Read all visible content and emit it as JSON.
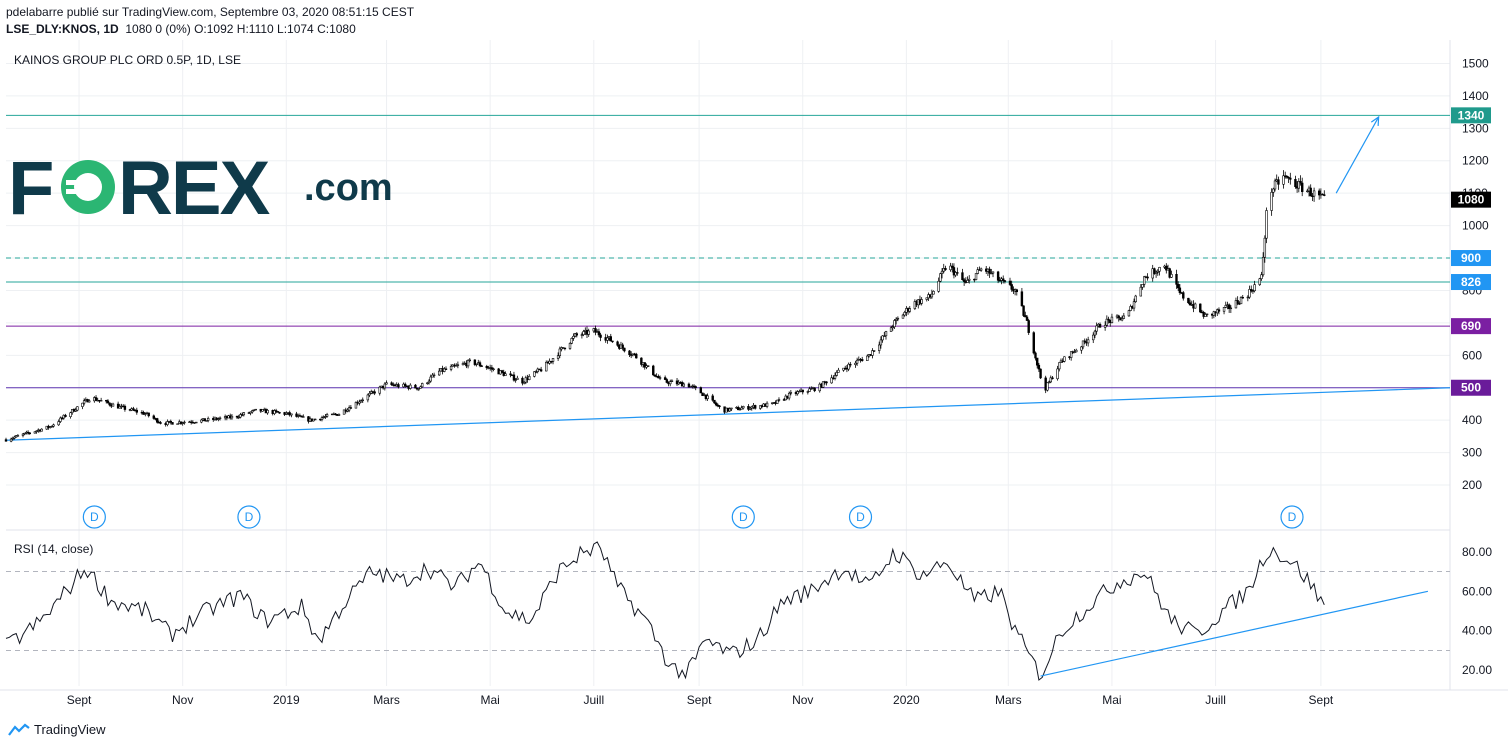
{
  "header": {
    "line1": "pdelabarre publié sur TradingView.com, Septembre 03, 2020 08:51:15 CEST",
    "symbol": "LSE_DLY:KNOS, 1D",
    "quote": "1080 0 (0%) O:1092 H:1110 L:1074 C:1080"
  },
  "chart_title": "KAINOS GROUP PLC ORD 0.5P, 1D, LSE",
  "rsi_title": "RSI (14, close)",
  "logo": {
    "name": "FOREX.com",
    "icon": "forex-logo"
  },
  "brand": {
    "text": "TradingView",
    "icon": "tradingview-icon"
  },
  "colors": {
    "teal": "#26a69a",
    "teal_badge": "#1f9a8c",
    "blue": "#2196f3",
    "purple": "#7b1fa2",
    "candle": "#000000",
    "grid": "#eef0f3"
  },
  "chart_data": {
    "type": "candlestick",
    "title": "KAINOS GROUP PLC ORD 0.5P, 1D, LSE",
    "symbol": "LSE_DLY:KNOS",
    "interval": "1D",
    "last": {
      "open": 1092,
      "high": 1110,
      "low": 1074,
      "close": 1080,
      "change": 0,
      "change_pct": "0%"
    },
    "y_ticks": [
      200,
      300,
      400,
      500,
      600,
      700,
      800,
      900,
      1000,
      1100,
      1200,
      1300,
      1400,
      1500
    ],
    "y_range": [
      160,
      1560
    ],
    "x_ticks": [
      {
        "label": "Sept",
        "date": "2018-09-01"
      },
      {
        "label": "Nov",
        "date": "2018-11-01"
      },
      {
        "label": "2019",
        "date": "2019-01-01"
      },
      {
        "label": "Mars",
        "date": "2019-03-01"
      },
      {
        "label": "Mai",
        "date": "2019-05-01"
      },
      {
        "label": "Juill",
        "date": "2019-07-01"
      },
      {
        "label": "Sept",
        "date": "2019-09-01"
      },
      {
        "label": "Nov",
        "date": "2019-11-01"
      },
      {
        "label": "2020",
        "date": "2020-01-01"
      },
      {
        "label": "Mars",
        "date": "2020-03-01"
      },
      {
        "label": "Mai",
        "date": "2020-05-01"
      },
      {
        "label": "Juill",
        "date": "2020-07-01"
      },
      {
        "label": "Sept",
        "date": "2020-09-01"
      }
    ],
    "x_range": [
      "2018-07-20",
      "2020-11-16"
    ],
    "price_path": [
      [
        "2018-07-20",
        340
      ],
      [
        "2018-08-15",
        380
      ],
      [
        "2018-09-08",
        470
      ],
      [
        "2018-09-25",
        440
      ],
      [
        "2018-10-10",
        420
      ],
      [
        "2018-10-20",
        390
      ],
      [
        "2018-11-15",
        400
      ],
      [
        "2018-12-01",
        410
      ],
      [
        "2018-12-15",
        430
      ],
      [
        "2019-01-01",
        420
      ],
      [
        "2019-01-15",
        400
      ],
      [
        "2019-02-01",
        420
      ],
      [
        "2019-02-10",
        450
      ],
      [
        "2019-03-01",
        510
      ],
      [
        "2019-03-20",
        500
      ],
      [
        "2019-04-01",
        550
      ],
      [
        "2019-04-20",
        580
      ],
      [
        "2019-05-01",
        560
      ],
      [
        "2019-05-20",
        520
      ],
      [
        "2019-06-01",
        560
      ],
      [
        "2019-06-20",
        660
      ],
      [
        "2019-07-01",
        675
      ],
      [
        "2019-07-10",
        650
      ],
      [
        "2019-07-25",
        600
      ],
      [
        "2019-08-10",
        520
      ],
      [
        "2019-08-25",
        510
      ],
      [
        "2019-09-01",
        490
      ],
      [
        "2019-09-15",
        430
      ],
      [
        "2019-10-01",
        440
      ],
      [
        "2019-10-15",
        450
      ],
      [
        "2019-10-25",
        480
      ],
      [
        "2019-11-10",
        500
      ],
      [
        "2019-11-25",
        560
      ],
      [
        "2019-12-10",
        600
      ],
      [
        "2019-12-25",
        700
      ],
      [
        "2020-01-05",
        760
      ],
      [
        "2020-01-15",
        780
      ],
      [
        "2020-01-25",
        880
      ],
      [
        "2020-02-05",
        820
      ],
      [
        "2020-02-15",
        870
      ],
      [
        "2020-02-25",
        830
      ],
      [
        "2020-03-05",
        800
      ],
      [
        "2020-03-12",
        700
      ],
      [
        "2020-03-22",
        490
      ],
      [
        "2020-04-01",
        580
      ],
      [
        "2020-04-15",
        640
      ],
      [
        "2020-04-25",
        700
      ],
      [
        "2020-05-10",
        720
      ],
      [
        "2020-05-20",
        840
      ],
      [
        "2020-06-01",
        880
      ],
      [
        "2020-06-10",
        790
      ],
      [
        "2020-06-25",
        720
      ],
      [
        "2020-07-10",
        750
      ],
      [
        "2020-07-20",
        790
      ],
      [
        "2020-07-28",
        840
      ],
      [
        "2020-08-01",
        1100
      ],
      [
        "2020-08-10",
        1150
      ],
      [
        "2020-08-20",
        1120
      ],
      [
        "2020-09-03",
        1080
      ]
    ],
    "levels": [
      {
        "value": 1340,
        "label": "1340",
        "style": "solid",
        "color": "#26a69a",
        "badge": "#1f9a8c"
      },
      {
        "value": 900,
        "label": "900",
        "style": "dashed",
        "color": "#26a69a",
        "badge": "#2196f3"
      },
      {
        "value": 826,
        "label": "826",
        "style": "solid",
        "color": "#26a69a",
        "badge": "#2196f3"
      },
      {
        "value": 690,
        "label": "690",
        "style": "solid",
        "color": "#7b1fa2",
        "badge": "#7b1fa2"
      },
      {
        "value": 500,
        "label": "500",
        "style": "solid",
        "color": "#5e35b1",
        "badge": "#6a1b9a"
      }
    ],
    "last_price_label": "1080",
    "trendline": {
      "from": [
        "2018-07-20",
        338
      ],
      "to": [
        "2020-11-16",
        500
      ]
    },
    "projection_arrow": {
      "from": [
        "2020-09-10",
        1100
      ],
      "to": [
        "2020-10-05",
        1335
      ]
    },
    "dividend_markers": [
      {
        "date": "2018-09-10",
        "label": "D"
      },
      {
        "date": "2018-12-10",
        "label": "D"
      },
      {
        "date": "2019-09-27",
        "label": "D"
      },
      {
        "date": "2019-12-05",
        "label": "D"
      },
      {
        "date": "2020-08-15",
        "label": "D"
      }
    ],
    "rsi": {
      "title": "RSI (14, close)",
      "y_ticks": [
        "20.00",
        "40.00",
        "60.00",
        "80.00"
      ],
      "y_range": [
        14,
        86
      ],
      "bands": [
        30,
        70
      ],
      "path": [
        [
          "2018-07-20",
          32
        ],
        [
          "2018-08-10",
          45
        ],
        [
          "2018-09-05",
          72
        ],
        [
          "2018-09-20",
          55
        ],
        [
          "2018-10-10",
          50
        ],
        [
          "2018-10-25",
          38
        ],
        [
          "2018-11-15",
          50
        ],
        [
          "2018-12-05",
          58
        ],
        [
          "2018-12-20",
          45
        ],
        [
          "2019-01-10",
          52
        ],
        [
          "2019-01-20",
          35
        ],
        [
          "2019-02-05",
          55
        ],
        [
          "2019-02-20",
          70
        ],
        [
          "2019-03-10",
          65
        ],
        [
          "2019-03-25",
          72
        ],
        [
          "2019-04-10",
          62
        ],
        [
          "2019-04-25",
          75
        ],
        [
          "2019-05-10",
          50
        ],
        [
          "2019-05-25",
          45
        ],
        [
          "2019-06-10",
          70
        ],
        [
          "2019-06-25",
          80
        ],
        [
          "2019-07-05",
          82
        ],
        [
          "2019-07-15",
          62
        ],
        [
          "2019-08-01",
          45
        ],
        [
          "2019-08-15",
          22
        ],
        [
          "2019-08-25",
          18
        ],
        [
          "2019-09-05",
          35
        ],
        [
          "2019-09-20",
          28
        ],
        [
          "2019-10-05",
          35
        ],
        [
          "2019-10-20",
          55
        ],
        [
          "2019-11-05",
          60
        ],
        [
          "2019-11-25",
          72
        ],
        [
          "2019-12-10",
          62
        ],
        [
          "2019-12-25",
          80
        ],
        [
          "2020-01-10",
          68
        ],
        [
          "2020-01-25",
          75
        ],
        [
          "2020-02-10",
          55
        ],
        [
          "2020-02-25",
          60
        ],
        [
          "2020-03-05",
          40
        ],
        [
          "2020-03-20",
          17
        ],
        [
          "2020-04-01",
          40
        ],
        [
          "2020-04-20",
          55
        ],
        [
          "2020-05-05",
          65
        ],
        [
          "2020-05-20",
          70
        ],
        [
          "2020-06-05",
          45
        ],
        [
          "2020-06-20",
          38
        ],
        [
          "2020-07-05",
          50
        ],
        [
          "2020-07-20",
          60
        ],
        [
          "2020-08-01",
          82
        ],
        [
          "2020-08-15",
          75
        ],
        [
          "2020-08-25",
          65
        ],
        [
          "2020-09-03",
          52
        ]
      ],
      "trendline": {
        "from": [
          "2020-03-20",
          17
        ],
        "to": [
          "2020-11-03",
          60
        ]
      }
    }
  }
}
